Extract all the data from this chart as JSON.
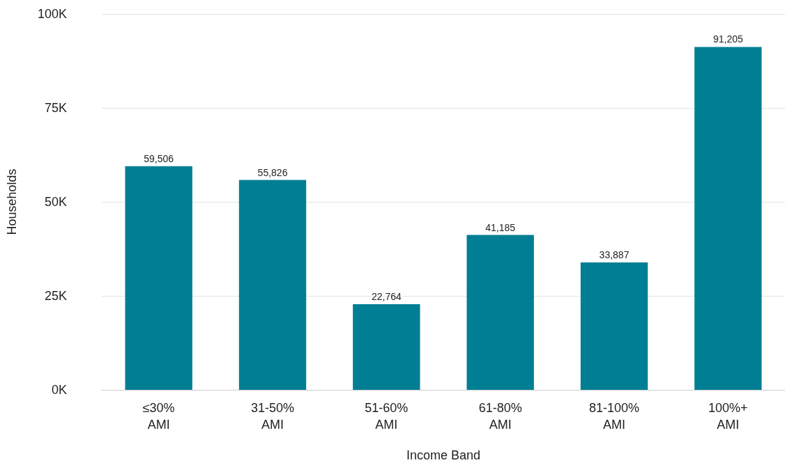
{
  "chart_data": {
    "type": "bar",
    "xlabel": "Income Band",
    "ylabel": "Households",
    "categories": [
      "≤30%\nAMI",
      "31-50%\nAMI",
      "51-60%\nAMI",
      "61-80%\nAMI",
      "81-100%\nAMI",
      "100%+\nAMI"
    ],
    "values": [
      59506,
      55826,
      22764,
      41185,
      33887,
      91205
    ],
    "color": "#007e94",
    "value_labels": [
      "59,506",
      "55,826",
      "22,764",
      "41,185",
      "33,887",
      "91,205"
    ],
    "ylim": [
      0,
      100000
    ],
    "yticks": [
      {
        "value": 0,
        "label": "0K"
      },
      {
        "value": 25000,
        "label": "25K"
      },
      {
        "value": 50000,
        "label": "50K"
      },
      {
        "value": 75000,
        "label": "75K"
      },
      {
        "value": 100000,
        "label": "100K"
      }
    ],
    "grid": "y"
  }
}
